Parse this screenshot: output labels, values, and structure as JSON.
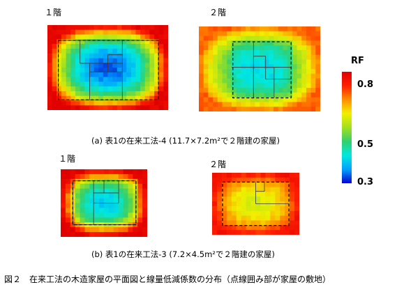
{
  "figure": {
    "caption": "図２　在来工法の木造家屋の平面図と線量低減係数の分布（点線囲み部が家屋の敷地）"
  },
  "panel_a": {
    "caption": "(a) 表1の在来工法-4 (11.7×7.2m²で２階建の家屋)",
    "floor1_label": "１階",
    "floor2_label": "２階"
  },
  "panel_b": {
    "caption": "(b) 表1の在来工法-3 (7.2×4.5m²で２階建の家屋)",
    "floor1_label": "１階",
    "floor2_label": "２階"
  },
  "colorbar": {
    "title": "RF",
    "ticks": [
      {
        "label": "0.8",
        "value": 0.8
      },
      {
        "label": "0.5",
        "value": 0.5
      },
      {
        "label": "0.3",
        "value": 0.3
      }
    ],
    "range": [
      0.28,
      0.88
    ],
    "colors": [
      "#0000d0",
      "#00a0ff",
      "#00e8e0",
      "#30d070",
      "#a0e020",
      "#f0f000",
      "#ff9000",
      "#ff2000",
      "#e00000"
    ]
  }
}
